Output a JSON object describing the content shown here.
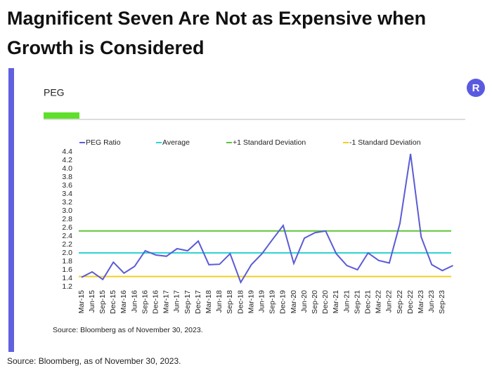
{
  "title_lines": [
    "Magnificent Seven Are Not as Expensive when",
    "Growth is Considered"
  ],
  "footer": "Source: Bloomberg, as of November 30, 2023.",
  "chart_data": {
    "type": "line",
    "title": "PEG",
    "badge": "R",
    "source": "Source: Bloomberg as of November 30, 2023.",
    "categories": [
      "Mar-15",
      "Jun-15",
      "Sep-15",
      "Dec-15",
      "Mar-16",
      "Jun-16",
      "Sep-16",
      "Dec-16",
      "Mar-17",
      "Jun-17",
      "Sep-17",
      "Dec-17",
      "Mar-18",
      "Jun-18",
      "Sep-18",
      "Dec-18",
      "Mar-19",
      "Jun-19",
      "Sep-19",
      "Dec-19",
      "Mar-20",
      "Jun-20",
      "Sep-20",
      "Dec-20",
      "Mar-21",
      "Jun-21",
      "Sep-21",
      "Dec-21",
      "Mar-22",
      "Jun-22",
      "Sep-22",
      "Dec-22",
      "Mar-23",
      "Jun-23",
      "Sep-23",
      null
    ],
    "series": [
      {
        "name": "PEG Ratio",
        "color": "#5b5bd6",
        "values": [
          1.42,
          1.55,
          1.37,
          1.78,
          1.52,
          1.68,
          2.05,
          1.95,
          1.92,
          2.1,
          2.05,
          2.28,
          1.72,
          1.73,
          1.98,
          1.3,
          1.72,
          1.98,
          2.32,
          2.65,
          1.75,
          2.35,
          2.48,
          2.52,
          1.98,
          1.7,
          1.6,
          2.0,
          1.82,
          1.76,
          2.7,
          4.35,
          2.38,
          1.72,
          1.58,
          1.7
        ]
      }
    ],
    "reference_lines": [
      {
        "name": "Average",
        "color": "#2ed3d3",
        "value": 2.0
      },
      {
        "name": "+1 Standard Deviation",
        "color": "#5ec43a",
        "value": 2.52
      },
      {
        "name": "-1 Standard Deviation",
        "color": "#f0d020",
        "value": 1.44
      }
    ],
    "ylim": [
      1.2,
      4.4
    ],
    "yticks": [
      1.2,
      1.4,
      1.6,
      1.8,
      {
        "value": 2,
        "label": "2.0"
      },
      2.2,
      2.4,
      2.6,
      2.8,
      {
        "value": 3,
        "label": "3.0"
      },
      3.2,
      3.4,
      3.6,
      3.8,
      {
        "value": 4,
        "label": "4.0"
      },
      4.2,
      4.4
    ]
  }
}
